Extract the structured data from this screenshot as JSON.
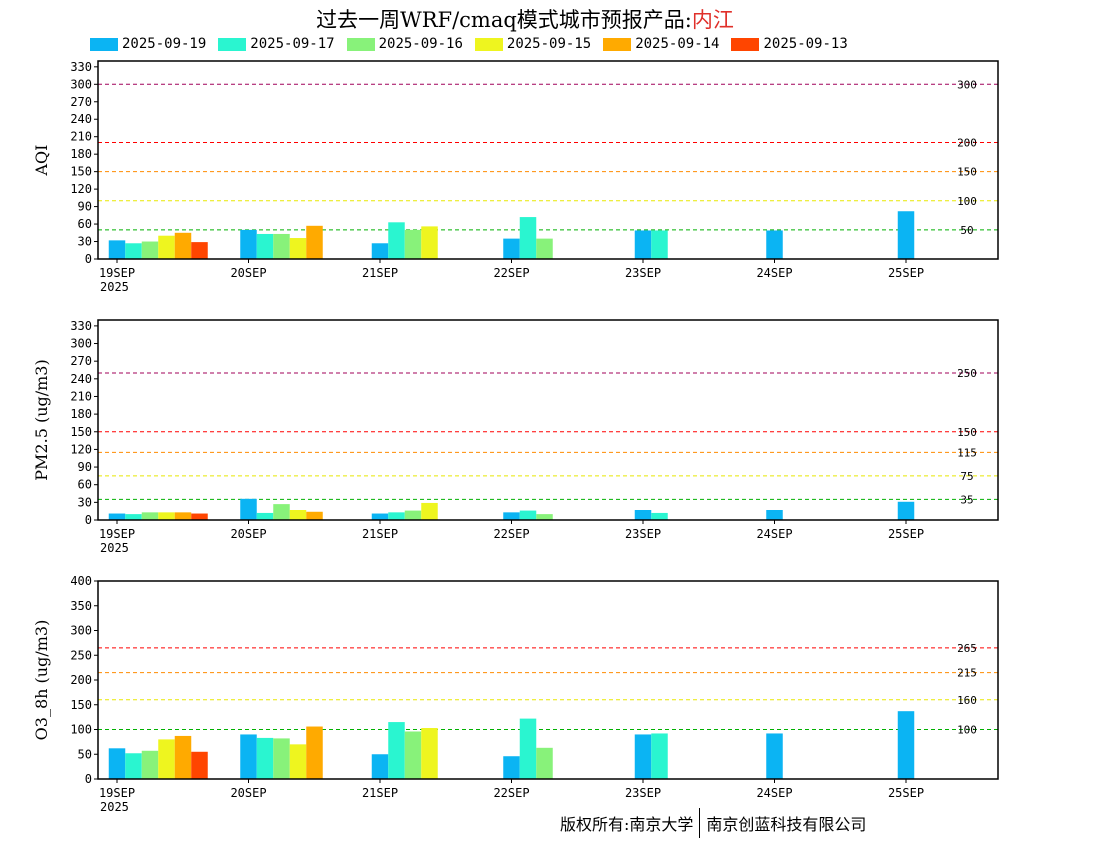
{
  "header": {
    "title_prefix": "过去一周WRF/cmaq模式城市预报产品:",
    "city": "内江"
  },
  "legend": [
    {
      "label": "2025-09-19",
      "color": "#0bb4f3"
    },
    {
      "label": "2025-09-17",
      "color": "#2af5d0"
    },
    {
      "label": "2025-09-16",
      "color": "#88f27a"
    },
    {
      "label": "2025-09-15",
      "color": "#eef51f"
    },
    {
      "label": "2025-09-14",
      "color": "#ffaa00"
    },
    {
      "label": "2025-09-13",
      "color": "#ff4500"
    }
  ],
  "footer": {
    "left": "版权所有:南京大学",
    "right": "南京创蓝科技有限公司"
  },
  "chart_data": [
    {
      "type": "bar",
      "ylabel": "AQI",
      "ylim": [
        0,
        340
      ],
      "yticks": [
        0,
        30,
        60,
        90,
        120,
        150,
        180,
        210,
        240,
        270,
        300,
        330
      ],
      "categories": [
        "19SEP",
        "20SEP",
        "21SEP",
        "22SEP",
        "23SEP",
        "24SEP",
        "25SEP"
      ],
      "first_category_sublabel": "2025",
      "thresholds": [
        {
          "value": 50,
          "label": "50",
          "color": "#00b000"
        },
        {
          "value": 100,
          "label": "100",
          "color": "#e8e800"
        },
        {
          "value": 150,
          "label": "150",
          "color": "#ff8c00"
        },
        {
          "value": 200,
          "label": "200",
          "color": "#ff0000"
        },
        {
          "value": 300,
          "label": "300",
          "color": "#a0005a"
        }
      ],
      "series": [
        {
          "name": "2025-09-19",
          "values": [
            32,
            50,
            27,
            35,
            49,
            49,
            82
          ]
        },
        {
          "name": "2025-09-17",
          "values": [
            27,
            43,
            63,
            72,
            49,
            null,
            null
          ]
        },
        {
          "name": "2025-09-16",
          "values": [
            30,
            43,
            50,
            35,
            null,
            null,
            null
          ]
        },
        {
          "name": "2025-09-15",
          "values": [
            40,
            36,
            56,
            null,
            null,
            null,
            null
          ]
        },
        {
          "name": "2025-09-14",
          "values": [
            45,
            57,
            null,
            null,
            null,
            null,
            null
          ]
        },
        {
          "name": "2025-09-13",
          "values": [
            29,
            null,
            null,
            null,
            null,
            null,
            null
          ]
        }
      ]
    },
    {
      "type": "bar",
      "ylabel": "PM2.5 (ug/m3)",
      "ylim": [
        0,
        340
      ],
      "yticks": [
        0,
        30,
        60,
        90,
        120,
        150,
        180,
        210,
        240,
        270,
        300,
        330
      ],
      "categories": [
        "19SEP",
        "20SEP",
        "21SEP",
        "22SEP",
        "23SEP",
        "24SEP",
        "25SEP"
      ],
      "first_category_sublabel": "2025",
      "thresholds": [
        {
          "value": 35,
          "label": "35",
          "color": "#00b000"
        },
        {
          "value": 75,
          "label": "75",
          "color": "#e8e800"
        },
        {
          "value": 115,
          "label": "115",
          "color": "#ff8c00"
        },
        {
          "value": 150,
          "label": "150",
          "color": "#ff0000"
        },
        {
          "value": 250,
          "label": "250",
          "color": "#a0005a"
        }
      ],
      "series": [
        {
          "name": "2025-09-19",
          "values": [
            11,
            36,
            11,
            13,
            17,
            17,
            31
          ]
        },
        {
          "name": "2025-09-17",
          "values": [
            10,
            12,
            13,
            16,
            12,
            null,
            null
          ]
        },
        {
          "name": "2025-09-16",
          "values": [
            13,
            27,
            16,
            10,
            null,
            null,
            null
          ]
        },
        {
          "name": "2025-09-15",
          "values": [
            13,
            17,
            29,
            null,
            null,
            null,
            null
          ]
        },
        {
          "name": "2025-09-14",
          "values": [
            13,
            14,
            null,
            null,
            null,
            null,
            null
          ]
        },
        {
          "name": "2025-09-13",
          "values": [
            11,
            null,
            null,
            null,
            null,
            null,
            null
          ]
        }
      ]
    },
    {
      "type": "bar",
      "ylabel": "O3_8h (ug/m3)",
      "ylim": [
        0,
        400
      ],
      "yticks": [
        0,
        50,
        100,
        150,
        200,
        250,
        300,
        350,
        400
      ],
      "categories": [
        "19SEP",
        "20SEP",
        "21SEP",
        "22SEP",
        "23SEP",
        "24SEP",
        "25SEP"
      ],
      "first_category_sublabel": "2025",
      "thresholds": [
        {
          "value": 100,
          "label": "100",
          "color": "#00b000"
        },
        {
          "value": 160,
          "label": "160",
          "color": "#e8e800"
        },
        {
          "value": 215,
          "label": "215",
          "color": "#ff8c00"
        },
        {
          "value": 265,
          "label": "265",
          "color": "#ff0000"
        }
      ],
      "series": [
        {
          "name": "2025-09-19",
          "values": [
            62,
            90,
            50,
            46,
            90,
            92,
            137
          ]
        },
        {
          "name": "2025-09-17",
          "values": [
            52,
            83,
            115,
            122,
            92,
            null,
            null
          ]
        },
        {
          "name": "2025-09-16",
          "values": [
            57,
            82,
            96,
            63,
            null,
            null,
            null
          ]
        },
        {
          "name": "2025-09-15",
          "values": [
            80,
            70,
            103,
            null,
            null,
            null,
            null
          ]
        },
        {
          "name": "2025-09-14",
          "values": [
            87,
            106,
            null,
            null,
            null,
            null,
            null
          ]
        },
        {
          "name": "2025-09-13",
          "values": [
            55,
            null,
            null,
            null,
            null,
            null,
            null
          ]
        }
      ]
    }
  ]
}
